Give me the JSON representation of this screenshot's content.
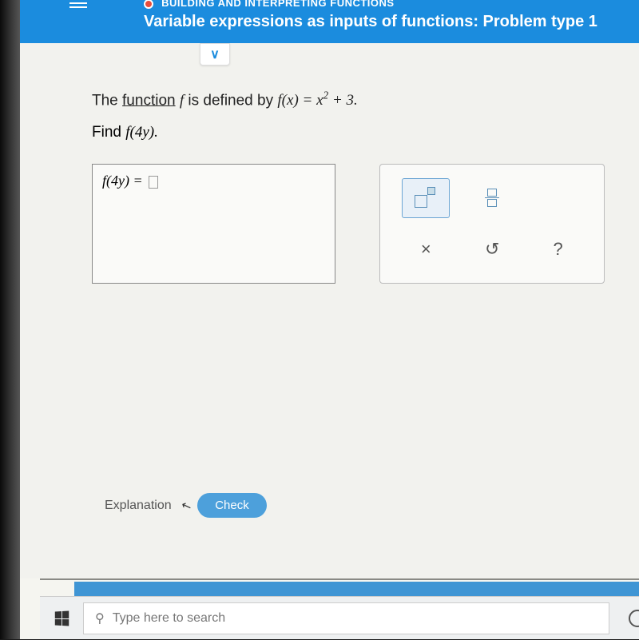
{
  "header": {
    "module_fragment": "BUILDING AND INTERPRETING FUNCTIONS",
    "problem_title": "Variable expressions as inputs of functions: Problem type 1"
  },
  "problem": {
    "intro_prefix": "The ",
    "underlined_word": "function",
    "intro_mid": " ",
    "var_f": "f",
    "intro_suffix": " is defined by ",
    "definition": "f(x) = x² + 3.",
    "find_prefix": "Find ",
    "find_expr": "f(4y).",
    "answer_lhs": "f(4y) = "
  },
  "tools": {
    "x_label": "×",
    "undo_label": "↻",
    "help_label": "?"
  },
  "actions": {
    "explanation": "Explanation",
    "check": "Check"
  },
  "taskbar": {
    "search_placeholder": "Type here to search"
  },
  "colors": {
    "header_bg": "#1b8cde",
    "check_bg": "#4da0db"
  }
}
